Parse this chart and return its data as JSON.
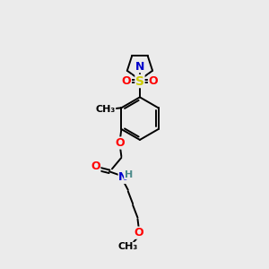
{
  "bg_color": "#ebebeb",
  "atom_colors": {
    "C": "#000000",
    "N": "#0000cc",
    "O": "#ff0000",
    "S": "#cccc00",
    "H": "#4a8a8a"
  },
  "bond_color": "#000000",
  "bond_width": 1.4,
  "font_size": 9,
  "fig_size": [
    3.0,
    3.0
  ],
  "dpi": 100
}
